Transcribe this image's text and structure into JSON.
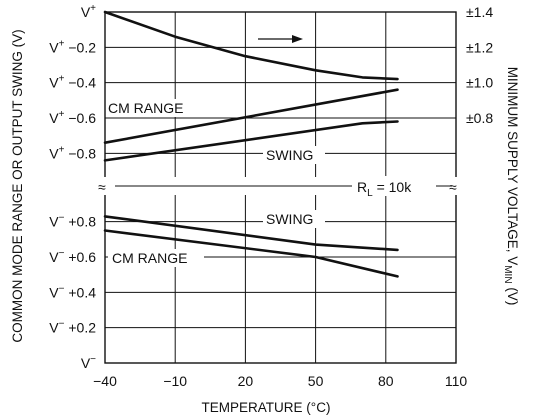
{
  "chart_data": {
    "type": "line",
    "title": "",
    "xlabel": "TEMPERATURE (°C)",
    "ylabel_left": "COMMON MODE RANGE OR OUTPUT SWING (V)",
    "ylabel_right_main": "MINIMUM SUPPLY VOLTAGE, V",
    "ylabel_right_sub": "MIN",
    "ylabel_right_unit": " (V)",
    "xlim": [
      -40,
      110
    ],
    "x_ticks": [
      -40,
      -10,
      20,
      50,
      80,
      110
    ],
    "x_tick_labels": [
      "−40",
      "−10",
      "20",
      "50",
      "80",
      "110"
    ],
    "grid": true,
    "axis_break_symbol": "≈",
    "upper_panel": {
      "ylim": [
        -0.9,
        0
      ],
      "left_ticks": [
        {
          "value": 0,
          "base": "V",
          "sup": "+",
          "offset": ""
        },
        {
          "value": -0.2,
          "base": "V",
          "sup": "+",
          "offset": " −0.2"
        },
        {
          "value": -0.4,
          "base": "V",
          "sup": "+",
          "offset": " −0.4"
        },
        {
          "value": -0.6,
          "base": "V",
          "sup": "+",
          "offset": " −0.6"
        },
        {
          "value": -0.8,
          "base": "V",
          "sup": "+",
          "offset": " −0.8"
        }
      ],
      "right_ticks": [
        {
          "value": 0,
          "label": "±1.4"
        },
        {
          "value": -0.2,
          "label": "±1.2"
        },
        {
          "value": -0.4,
          "label": "±1.0"
        },
        {
          "value": -0.6,
          "label": "±0.8"
        }
      ],
      "series": [
        {
          "name": "",
          "axis": "right",
          "x": [
            -40,
            -10,
            20,
            50,
            70,
            85
          ],
          "y": [
            0.0,
            -0.14,
            -0.25,
            -0.33,
            -0.37,
            -0.38
          ]
        },
        {
          "name": "CM RANGE",
          "axis": "left",
          "x": [
            -40,
            85
          ],
          "y": [
            -0.74,
            -0.44
          ]
        },
        {
          "name": "SWING",
          "axis": "left",
          "x": [
            -40,
            70,
            85
          ],
          "y": [
            -0.84,
            -0.63,
            -0.62
          ]
        }
      ],
      "annotations": {
        "cm_range": "CM RANGE",
        "swing": "SWING"
      }
    },
    "lower_panel": {
      "ylim": [
        0,
        0.9
      ],
      "left_ticks": [
        {
          "value": 0.8,
          "base": "V",
          "sup": "−",
          "offset": " +0.8"
        },
        {
          "value": 0.6,
          "base": "V",
          "sup": "−",
          "offset": " +0.6"
        },
        {
          "value": 0.4,
          "base": "V",
          "sup": "−",
          "offset": " +0.4"
        },
        {
          "value": 0.2,
          "base": "V",
          "sup": "−",
          "offset": " +0.2"
        },
        {
          "value": 0,
          "base": "V",
          "sup": "−",
          "offset": ""
        }
      ],
      "series": [
        {
          "name": "SWING",
          "x": [
            -40,
            50,
            85
          ],
          "y": [
            0.83,
            0.67,
            0.64
          ]
        },
        {
          "name": "CM RANGE",
          "x": [
            -40,
            50,
            85
          ],
          "y": [
            0.75,
            0.6,
            0.49
          ]
        }
      ],
      "annotations": {
        "swing": "SWING",
        "cm_range": "CM RANGE",
        "rl_main": "R",
        "rl_sub": "L",
        "rl_value": " = 10k"
      }
    }
  }
}
